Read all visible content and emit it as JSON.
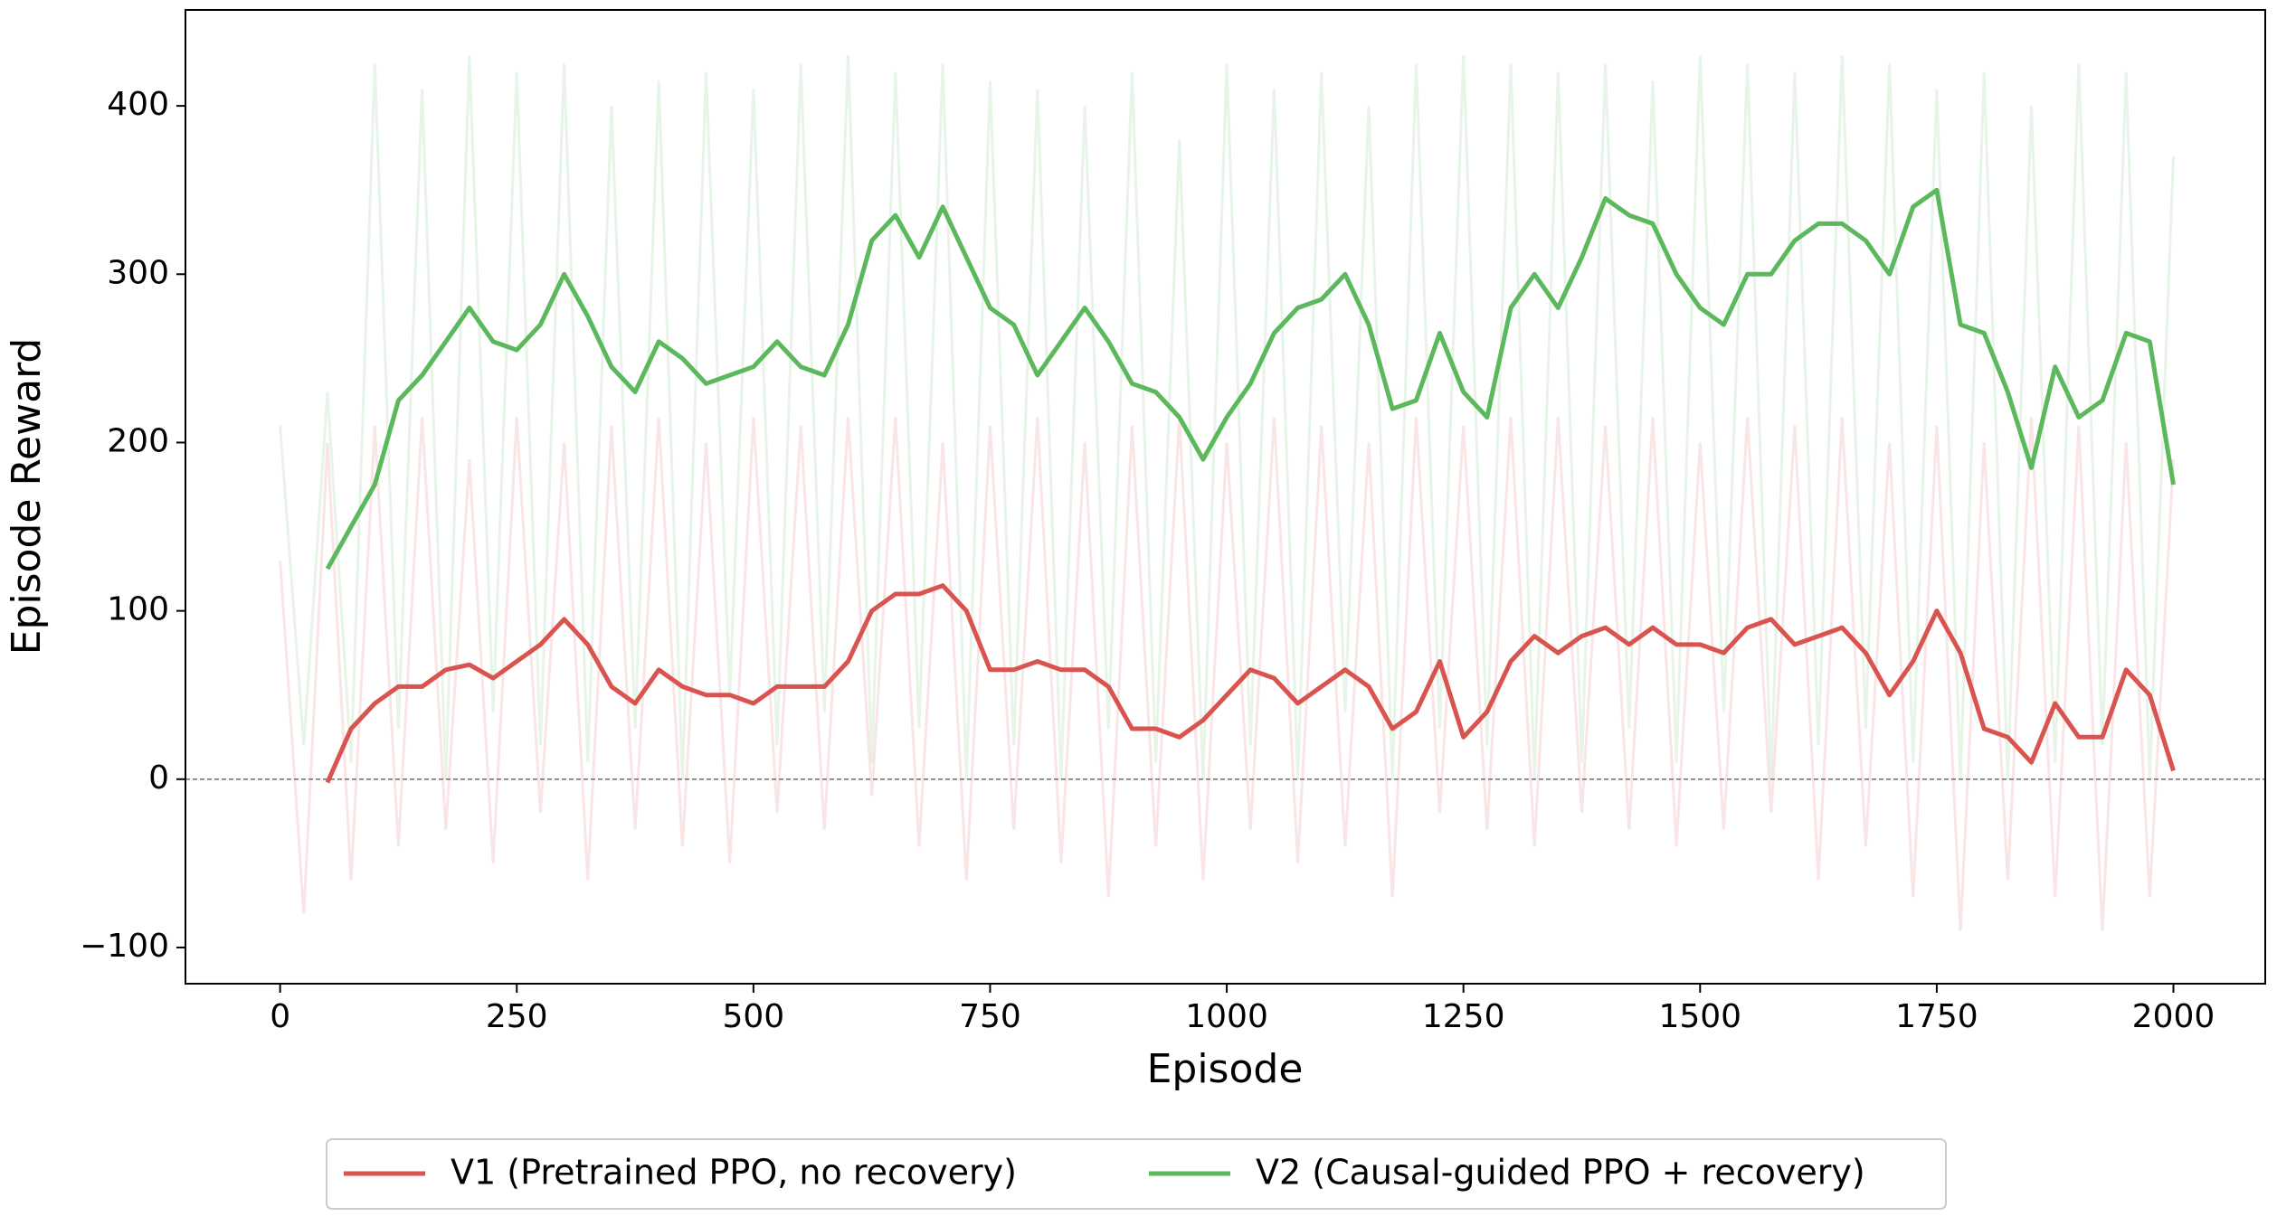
{
  "chart_data": {
    "type": "line",
    "xlabel": "Episode",
    "ylabel": "Episode Reward",
    "xlim": [
      -100,
      2097
    ],
    "ylim": [
      -121.5,
      457
    ],
    "xticks": [
      0,
      250,
      500,
      750,
      1000,
      1250,
      1500,
      1750,
      2000
    ],
    "yticks": [
      {
        "value": -100,
        "label": "−100"
      },
      0,
      100,
      200,
      300,
      400
    ],
    "hline": 0,
    "legend": "below",
    "x_raw": [
      0,
      25,
      50,
      75,
      100,
      125,
      150,
      175,
      200,
      225,
      250,
      275,
      300,
      325,
      350,
      375,
      400,
      425,
      450,
      475,
      500,
      525,
      550,
      575,
      600,
      625,
      650,
      675,
      700,
      725,
      750,
      775,
      800,
      825,
      850,
      875,
      900,
      925,
      950,
      975,
      1000,
      1025,
      1050,
      1075,
      1100,
      1125,
      1150,
      1175,
      1200,
      1225,
      1250,
      1275,
      1300,
      1325,
      1350,
      1375,
      1400,
      1425,
      1450,
      1475,
      1500,
      1525,
      1550,
      1575,
      1600,
      1625,
      1650,
      1675,
      1700,
      1725,
      1750,
      1775,
      1800,
      1825,
      1850,
      1875,
      1900,
      1925,
      1950,
      1975,
      2000
    ],
    "x": [
      50,
      75,
      100,
      125,
      150,
      175,
      200,
      225,
      250,
      275,
      300,
      325,
      350,
      375,
      400,
      425,
      450,
      475,
      500,
      525,
      550,
      575,
      600,
      625,
      650,
      675,
      700,
      725,
      750,
      775,
      800,
      825,
      850,
      875,
      900,
      925,
      950,
      975,
      1000,
      1025,
      1050,
      1075,
      1100,
      1125,
      1150,
      1175,
      1200,
      1225,
      1250,
      1275,
      1300,
      1325,
      1350,
      1375,
      1400,
      1425,
      1450,
      1475,
      1500,
      1525,
      1550,
      1575,
      1600,
      1625,
      1650,
      1675,
      1700,
      1725,
      1750,
      1775,
      1800,
      1825,
      1850,
      1875,
      1900,
      1925,
      1950,
      1975,
      2000
    ],
    "series": [
      {
        "name": "V1 (Pretrained PPO, no recovery)",
        "color": "#d9534f",
        "raw_values": [
          130,
          -80,
          200,
          -60,
          210,
          -40,
          215,
          -30,
          190,
          -50,
          215,
          -20,
          200,
          -60,
          210,
          -30,
          215,
          -40,
          200,
          -50,
          215,
          -20,
          210,
          -30,
          215,
          -10,
          215,
          -40,
          200,
          -60,
          210,
          -30,
          215,
          -50,
          200,
          -70,
          210,
          -40,
          215,
          -60,
          200,
          -30,
          215,
          -50,
          210,
          -40,
          200,
          -70,
          215,
          -20,
          210,
          -30,
          215,
          -40,
          215,
          -20,
          210,
          -30,
          215,
          -40,
          200,
          -30,
          215,
          -20,
          210,
          -60,
          215,
          -40,
          200,
          -70,
          210,
          -90,
          200,
          -60,
          215,
          -70,
          210,
          -90,
          200,
          -70,
          190
        ],
        "values": [
          -2,
          30,
          45,
          55,
          55,
          65,
          68,
          60,
          70,
          80,
          95,
          80,
          55,
          45,
          65,
          55,
          50,
          50,
          45,
          55,
          55,
          55,
          70,
          100,
          110,
          110,
          115,
          100,
          65,
          65,
          70,
          65,
          65,
          55,
          30,
          30,
          25,
          35,
          50,
          65,
          60,
          45,
          55,
          65,
          55,
          30,
          40,
          70,
          25,
          40,
          70,
          85,
          75,
          85,
          90,
          80,
          90,
          80,
          80,
          75,
          90,
          95,
          80,
          85,
          90,
          75,
          50,
          70,
          100,
          75,
          30,
          25,
          10,
          45,
          25,
          25,
          65,
          50,
          5
        ]
      },
      {
        "name": "V2 (Causal-guided PPO + recovery)",
        "color": "#5cb85c",
        "raw_values": [
          210,
          20,
          230,
          10,
          425,
          30,
          410,
          0,
          430,
          40,
          420,
          20,
          425,
          10,
          400,
          30,
          415,
          0,
          420,
          50,
          410,
          20,
          425,
          40,
          430,
          10,
          420,
          30,
          425,
          0,
          415,
          20,
          410,
          0,
          400,
          30,
          420,
          10,
          380,
          0,
          425,
          20,
          410,
          0,
          420,
          40,
          400,
          0,
          425,
          30,
          430,
          20,
          425,
          0,
          420,
          10,
          425,
          30,
          415,
          10,
          430,
          40,
          425,
          0,
          420,
          20,
          430,
          30,
          425,
          10,
          410,
          0,
          420,
          0,
          400,
          10,
          425,
          20,
          420,
          0,
          370
        ],
        "values": [
          125,
          150,
          175,
          225,
          240,
          260,
          280,
          260,
          255,
          270,
          300,
          275,
          245,
          230,
          260,
          250,
          235,
          240,
          245,
          260,
          245,
          240,
          270,
          320,
          335,
          310,
          340,
          310,
          280,
          270,
          240,
          260,
          280,
          260,
          235,
          230,
          215,
          190,
          215,
          235,
          265,
          280,
          285,
          300,
          270,
          220,
          225,
          265,
          230,
          215,
          280,
          300,
          280,
          310,
          345,
          335,
          330,
          300,
          280,
          270,
          300,
          300,
          320,
          330,
          330,
          320,
          300,
          340,
          350,
          270,
          265,
          230,
          185,
          245,
          215,
          225,
          265,
          260,
          175
        ]
      }
    ]
  }
}
